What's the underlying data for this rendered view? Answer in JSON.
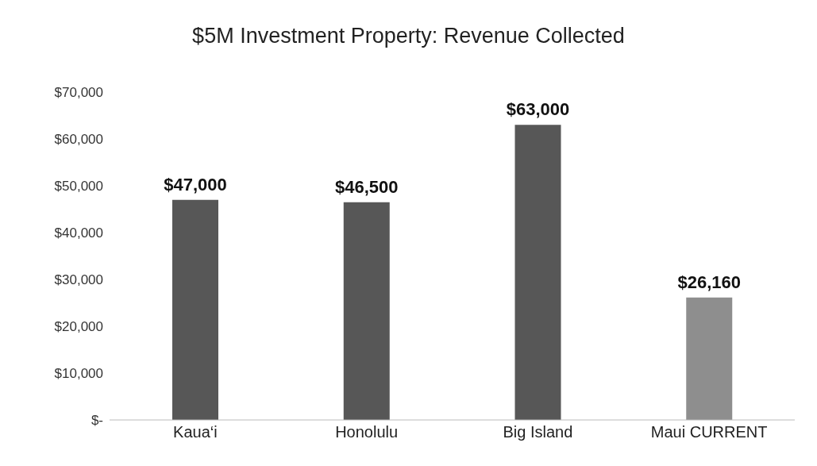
{
  "chart_data": {
    "type": "bar",
    "title": "$5M Investment Property: Revenue Collected",
    "categories": [
      "Kaua‘i",
      "Honolulu",
      "Big Island",
      "Maui CURRENT"
    ],
    "values": [
      47000,
      46500,
      63000,
      26160
    ],
    "colors": [
      "#575757",
      "#575757",
      "#575757",
      "#8e8e8e"
    ],
    "value_labels": [
      "$47,000",
      "$46,500",
      "$63,000",
      "$26,160"
    ],
    "ylim": [
      0,
      70000
    ],
    "yticks": [
      {
        "value": 0,
        "label": "$-"
      },
      {
        "value": 10000,
        "label": "$10,000"
      },
      {
        "value": 20000,
        "label": "$20,000"
      },
      {
        "value": 30000,
        "label": "$30,000"
      },
      {
        "value": 40000,
        "label": "$40,000"
      },
      {
        "value": 50000,
        "label": "$50,000"
      },
      {
        "value": 60000,
        "label": "$60,000"
      },
      {
        "value": 70000,
        "label": "$70,000"
      }
    ],
    "grid": false,
    "legend": false
  }
}
